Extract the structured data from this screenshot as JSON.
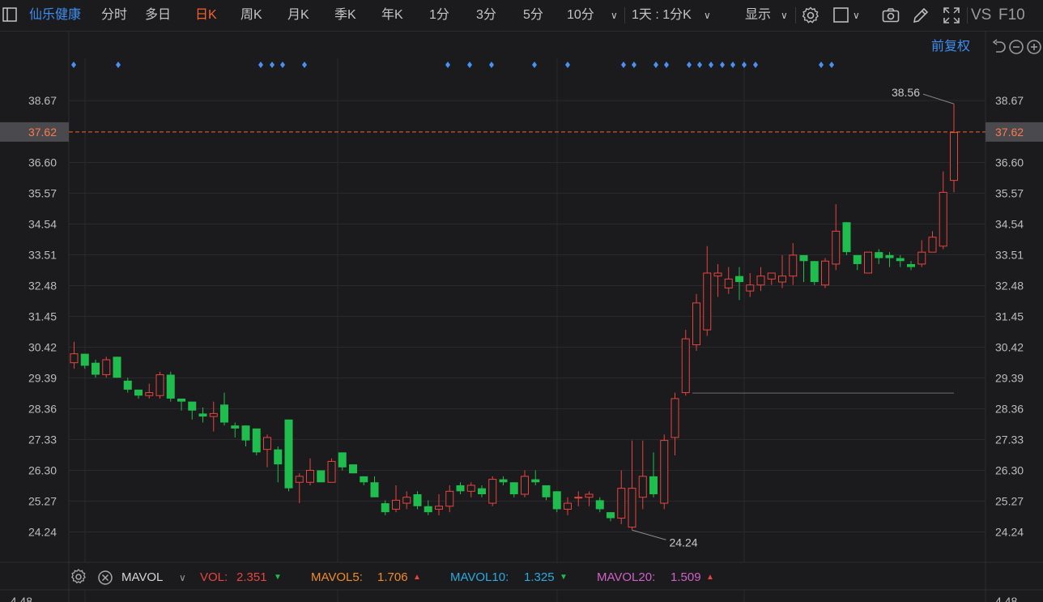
{
  "toolbar": {
    "stock_name": "仙乐健康",
    "periods": [
      "分时",
      "多日",
      "日K",
      "周K",
      "月K",
      "季K",
      "年K",
      "1分",
      "3分",
      "5分",
      "10分"
    ],
    "active_period": "日K",
    "period_more": "1天 : 1分K",
    "display_label": "显示",
    "vs_label": "VS",
    "f10_label": "F10",
    "icons": [
      "settings-gear-icon",
      "square-icon",
      "camera-icon",
      "pencil-icon",
      "fullscreen-icon"
    ]
  },
  "adjust_label": "前复权",
  "current_price": "37.62",
  "colors": {
    "up": "#e8433f",
    "down": "#1fbd4d",
    "accent": "#f3622d",
    "blue": "#3d8ef0",
    "marker": "#4a90f5"
  },
  "chart_data": {
    "type": "candlestick",
    "y_ticks": [
      "38.67",
      "37.62",
      "36.60",
      "35.57",
      "34.54",
      "33.51",
      "32.48",
      "31.45",
      "30.42",
      "29.39",
      "28.36",
      "27.33",
      "26.30",
      "25.27",
      "24.24"
    ],
    "ylim": [
      23.8,
      39.5
    ],
    "high_label": "38.56",
    "low_label": "24.24",
    "reference_line_value": 28.9,
    "candles": [
      [
        29.9,
        30.2,
        30.6,
        29.7
      ],
      [
        30.2,
        29.8,
        30.2,
        29.7
      ],
      [
        29.9,
        29.5,
        30.0,
        29.4
      ],
      [
        29.5,
        30.0,
        30.1,
        29.4
      ],
      [
        30.1,
        29.4,
        30.1,
        29.4
      ],
      [
        29.3,
        29.0,
        29.4,
        28.9
      ],
      [
        29.0,
        28.8,
        29.0,
        28.7
      ],
      [
        28.8,
        28.9,
        29.2,
        28.7
      ],
      [
        28.8,
        29.5,
        29.6,
        28.7
      ],
      [
        29.5,
        28.7,
        29.6,
        28.6
      ],
      [
        28.7,
        28.6,
        28.7,
        28.3
      ],
      [
        28.6,
        28.3,
        28.6,
        28.0
      ],
      [
        28.2,
        28.1,
        28.4,
        27.9
      ],
      [
        28.1,
        28.2,
        28.6,
        27.6
      ],
      [
        28.5,
        27.9,
        28.9,
        27.8
      ],
      [
        27.8,
        27.7,
        27.9,
        27.4
      ],
      [
        27.8,
        27.3,
        27.8,
        27.1
      ],
      [
        27.7,
        26.9,
        27.7,
        26.8
      ],
      [
        27.0,
        27.4,
        27.5,
        26.4
      ],
      [
        27.0,
        26.5,
        27.1,
        25.9
      ],
      [
        28.0,
        25.7,
        28.0,
        25.6
      ],
      [
        25.9,
        26.1,
        26.2,
        25.2
      ],
      [
        25.9,
        26.3,
        26.7,
        25.8
      ],
      [
        26.3,
        25.9,
        26.3,
        25.9
      ],
      [
        25.9,
        26.6,
        26.7,
        25.9
      ],
      [
        26.9,
        26.4,
        26.9,
        26.3
      ],
      [
        26.5,
        26.2,
        26.5,
        26.2
      ],
      [
        26.1,
        25.9,
        26.1,
        25.8
      ],
      [
        25.9,
        25.4,
        26.1,
        25.4
      ],
      [
        25.2,
        24.9,
        25.3,
        24.8
      ],
      [
        25.0,
        25.3,
        25.8,
        24.9
      ],
      [
        25.2,
        25.4,
        25.6,
        25.0
      ],
      [
        25.5,
        25.1,
        25.6,
        25.0
      ],
      [
        25.1,
        24.9,
        25.3,
        24.8
      ],
      [
        25.0,
        25.1,
        25.5,
        24.8
      ],
      [
        25.1,
        25.6,
        25.8,
        24.9
      ],
      [
        25.8,
        25.6,
        25.9,
        25.5
      ],
      [
        25.6,
        25.8,
        25.9,
        25.4
      ],
      [
        25.7,
        25.5,
        25.8,
        25.4
      ],
      [
        25.2,
        26.0,
        26.1,
        25.1
      ],
      [
        26.0,
        25.9,
        26.1,
        25.8
      ],
      [
        25.9,
        25.5,
        25.9,
        25.4
      ],
      [
        25.5,
        26.1,
        26.3,
        25.4
      ],
      [
        26.0,
        25.9,
        26.3,
        25.8
      ],
      [
        25.8,
        25.4,
        25.8,
        25.3
      ],
      [
        25.6,
        25.0,
        25.6,
        24.9
      ],
      [
        25.0,
        25.2,
        25.4,
        24.8
      ],
      [
        25.4,
        25.4,
        25.6,
        25.1
      ],
      [
        25.4,
        25.5,
        25.6,
        25.1
      ],
      [
        25.3,
        25.0,
        25.4,
        24.9
      ],
      [
        24.9,
        24.7,
        24.9,
        24.6
      ],
      [
        24.7,
        25.7,
        26.3,
        24.5
      ],
      [
        24.4,
        25.7,
        27.3,
        24.3
      ],
      [
        25.4,
        26.1,
        27.3,
        25.0
      ],
      [
        26.1,
        25.5,
        26.9,
        25.4
      ],
      [
        25.2,
        27.3,
        27.5,
        25.0
      ],
      [
        27.4,
        28.7,
        28.9,
        26.8
      ],
      [
        28.9,
        30.7,
        31.0,
        28.8
      ],
      [
        30.5,
        31.9,
        32.2,
        30.3
      ],
      [
        31.0,
        32.9,
        33.8,
        30.8
      ],
      [
        32.8,
        32.9,
        33.2,
        32.1
      ],
      [
        32.4,
        32.7,
        33.1,
        32.2
      ],
      [
        32.8,
        32.6,
        33.1,
        32.0
      ],
      [
        32.3,
        32.5,
        32.9,
        32.1
      ],
      [
        32.5,
        32.8,
        33.1,
        32.3
      ],
      [
        32.7,
        32.9,
        32.9,
        32.5
      ],
      [
        32.6,
        32.8,
        33.5,
        32.4
      ],
      [
        32.8,
        33.5,
        33.9,
        32.5
      ],
      [
        33.5,
        33.3,
        33.5,
        32.6
      ],
      [
        33.3,
        32.6,
        33.3,
        32.5
      ],
      [
        32.5,
        33.3,
        33.4,
        32.4
      ],
      [
        33.2,
        34.3,
        35.2,
        33.0
      ],
      [
        34.6,
        33.6,
        34.6,
        33.5
      ],
      [
        33.5,
        33.2,
        33.5,
        33.0
      ],
      [
        32.9,
        33.6,
        33.6,
        32.9
      ],
      [
        33.6,
        33.4,
        33.7,
        33.2
      ],
      [
        33.5,
        33.4,
        33.6,
        33.1
      ],
      [
        33.4,
        33.3,
        33.5,
        33.1
      ],
      [
        33.2,
        33.1,
        33.3,
        33.0
      ],
      [
        33.2,
        33.6,
        34.0,
        33.1
      ],
      [
        33.6,
        34.1,
        34.3,
        33.6
      ],
      [
        33.8,
        35.6,
        36.3,
        33.7
      ],
      [
        36.0,
        37.6,
        38.56,
        35.6
      ]
    ]
  },
  "markers_x": [
    91,
    146,
    322,
    336,
    349,
    376,
    553,
    580,
    607,
    660,
    701,
    770,
    783,
    810,
    823,
    851,
    864,
    878,
    892,
    905,
    919,
    933,
    1014,
    1027
  ],
  "indicator": {
    "name": "MAVOL",
    "items": [
      {
        "label": "VOL:",
        "value": "2.351",
        "arrow": "down",
        "color": "#e8433f"
      },
      {
        "label": "MAVOL5:",
        "value": "1.706",
        "arrow": "up",
        "color": "#f08a2c"
      },
      {
        "label": "MAVOL10:",
        "value": "1.325",
        "arrow": "down",
        "color": "#2aa9e0"
      },
      {
        "label": "MAVOL20:",
        "value": "1.509",
        "arrow": "up",
        "color": "#d060c8"
      }
    ],
    "bottom_tick": "4.48"
  }
}
